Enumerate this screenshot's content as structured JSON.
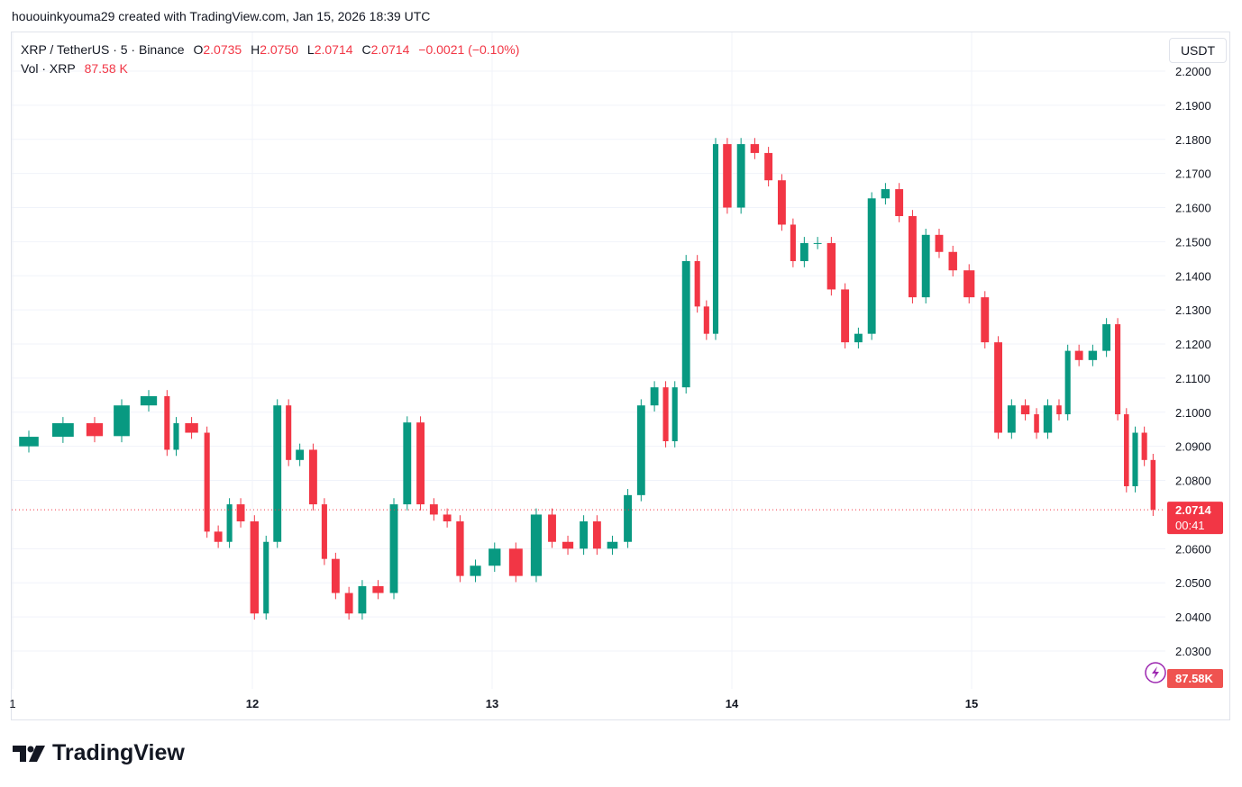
{
  "credit": "hououinkyouma29 created with TradingView.com, Jan 15, 2026 18:39 UTC",
  "legend": {
    "symbol": "XRP / TetherUS · 5 · Binance",
    "o_label": "O",
    "o": "2.0735",
    "h_label": "H",
    "h": "2.0750",
    "l_label": "L",
    "l": "2.0714",
    "c_label": "C",
    "c": "2.0714",
    "change": "−0.0021 (−0.10%)",
    "vol_label": "Vol · XRP",
    "vol": "87.58 K"
  },
  "currency_button": "USDT",
  "footer_brand": "TradingView",
  "colors": {
    "up": "#089981",
    "down": "#f23645",
    "up_vol": "#8ccfc4",
    "down_vol": "#f7a9a7",
    "accent": "#9c27b0"
  },
  "chart_data": {
    "type": "candlestick",
    "symbol": "XRP/USDT",
    "interval": "5",
    "ylim": [
      2.026,
      2.2
    ],
    "y_ticks": [
      "2.2000",
      "2.1900",
      "2.1800",
      "2.1700",
      "2.1600",
      "2.1500",
      "2.1400",
      "2.1300",
      "2.1200",
      "2.1100",
      "2.1000",
      "2.0900",
      "2.0800",
      "2.0600",
      "2.0500",
      "2.0400",
      "2.0300"
    ],
    "x_ticks": [
      {
        "label": "1",
        "date": "2026-01-11T00:00"
      },
      {
        "label": "12",
        "date": "2026-01-12T00:00"
      },
      {
        "label": "13",
        "date": "2026-01-13T00:00"
      },
      {
        "label": "14",
        "date": "2026-01-14T00:00"
      },
      {
        "label": "15",
        "date": "2026-01-15T00:00"
      }
    ],
    "xlim": [
      "2026-01-11T00:00",
      "2026-01-15T21:00"
    ],
    "last_price": "2.0714",
    "countdown": "00:41",
    "last_volume": "87.58K",
    "grid": true,
    "approx_close_path": [
      [
        "2026-01-11T00:00",
        2.09
      ],
      [
        "2026-01-11T03:15",
        2.0928
      ],
      [
        "2026-01-11T06:50",
        2.0968
      ],
      [
        "2026-01-11T09:35",
        2.093
      ],
      [
        "2026-01-11T12:15",
        2.102
      ],
      [
        "2026-01-11T15:00",
        2.1047
      ],
      [
        "2026-01-11T15:55",
        2.089
      ],
      [
        "2026-01-11T16:50",
        2.0968
      ],
      [
        "2026-01-11T19:00",
        2.094
      ],
      [
        "2026-01-11T19:55",
        2.065
      ],
      [
        "2026-01-11T21:15",
        2.062
      ],
      [
        "2026-01-11T22:10",
        2.073
      ],
      [
        "2026-01-11T23:30",
        2.068
      ],
      [
        "2026-01-12T00:55",
        2.041
      ],
      [
        "2026-01-12T01:50",
        2.062
      ],
      [
        "2026-01-12T03:10",
        2.102
      ],
      [
        "2026-01-12T04:05",
        2.086
      ],
      [
        "2026-01-12T05:25",
        2.089
      ],
      [
        "2026-01-12T06:45",
        2.073
      ],
      [
        "2026-01-12T07:40",
        2.057
      ],
      [
        "2026-01-12T09:00",
        2.047
      ],
      [
        "2026-01-12T10:20",
        2.041
      ],
      [
        "2026-01-12T11:40",
        2.049
      ],
      [
        "2026-01-12T13:30",
        2.047
      ],
      [
        "2026-01-12T14:50",
        2.073
      ],
      [
        "2026-01-12T16:10",
        2.097
      ],
      [
        "2026-01-12T17:30",
        2.073
      ],
      [
        "2026-01-12T18:50",
        2.07
      ],
      [
        "2026-01-12T20:10",
        2.068
      ],
      [
        "2026-01-12T21:25",
        2.052
      ],
      [
        "2026-01-12T23:15",
        2.055
      ],
      [
        "2026-01-13T01:15",
        2.06
      ],
      [
        "2026-01-13T03:30",
        2.052
      ],
      [
        "2026-01-13T05:20",
        2.07
      ],
      [
        "2026-01-13T06:40",
        2.062
      ],
      [
        "2026-01-13T08:30",
        2.06
      ],
      [
        "2026-01-13T09:50",
        2.068
      ],
      [
        "2026-01-13T11:10",
        2.06
      ],
      [
        "2026-01-13T12:55",
        2.062
      ],
      [
        "2026-01-13T14:15",
        2.0757
      ],
      [
        "2026-01-13T15:35",
        2.102
      ],
      [
        "2026-01-13T16:55",
        2.1073
      ],
      [
        "2026-01-13T17:50",
        2.0915
      ],
      [
        "2026-01-13T18:45",
        2.1073
      ],
      [
        "2026-01-13T20:05",
        2.1443
      ],
      [
        "2026-01-13T21:00",
        2.131
      ],
      [
        "2026-01-13T21:55",
        2.123
      ],
      [
        "2026-01-13T22:50",
        2.1786
      ],
      [
        "2026-01-14T00:15",
        2.16
      ],
      [
        "2026-01-14T01:35",
        2.1786
      ],
      [
        "2026-01-14T03:00",
        2.176
      ],
      [
        "2026-01-14T04:20",
        2.168
      ],
      [
        "2026-01-14T05:40",
        2.155
      ],
      [
        "2026-01-14T06:35",
        2.1443
      ],
      [
        "2026-01-14T07:55",
        2.1496
      ],
      [
        "2026-01-14T09:15",
        2.1496
      ],
      [
        "2026-01-14T10:40",
        2.136
      ],
      [
        "2026-01-14T12:00",
        2.1205
      ],
      [
        "2026-01-14T13:20",
        2.123
      ],
      [
        "2026-01-14T14:40",
        2.1627
      ],
      [
        "2026-01-14T16:05",
        2.1654
      ],
      [
        "2026-01-14T17:25",
        2.1575
      ],
      [
        "2026-01-14T18:45",
        2.1337
      ],
      [
        "2026-01-14T20:05",
        2.152
      ],
      [
        "2026-01-14T21:25",
        2.147
      ],
      [
        "2026-01-14T22:50",
        2.1416
      ],
      [
        "2026-01-15T00:40",
        2.1337
      ],
      [
        "2026-01-15T02:00",
        2.1205
      ],
      [
        "2026-01-15T03:20",
        2.094
      ],
      [
        "2026-01-15T04:40",
        2.102
      ],
      [
        "2026-01-15T06:05",
        2.0994
      ],
      [
        "2026-01-15T06:55",
        2.094
      ],
      [
        "2026-01-15T08:20",
        2.102
      ],
      [
        "2026-01-15T09:10",
        2.0994
      ],
      [
        "2026-01-15T10:05",
        2.118
      ],
      [
        "2026-01-15T11:25",
        2.1153
      ],
      [
        "2026-01-15T12:50",
        2.118
      ],
      [
        "2026-01-15T14:10",
        2.1258
      ],
      [
        "2026-01-15T15:05",
        2.0994
      ],
      [
        "2026-01-15T15:55",
        2.0783
      ],
      [
        "2026-01-15T16:50",
        2.094
      ],
      [
        "2026-01-15T17:45",
        2.086
      ],
      [
        "2026-01-15T18:35",
        2.0714
      ]
    ]
  }
}
